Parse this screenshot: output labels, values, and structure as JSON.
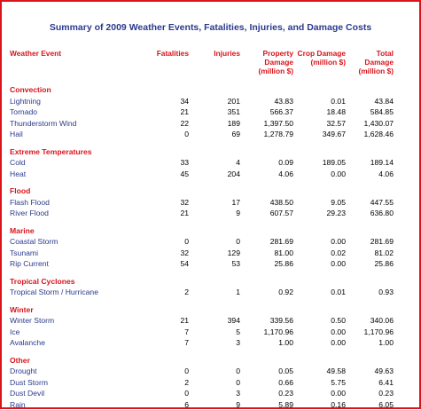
{
  "title": "Summary of 2009 Weather Events, Fatalities, Injuries, and Damage Costs",
  "headers": {
    "event": "Weather Event",
    "fatalities": "Fatalities",
    "injuries": "Injuries",
    "property": "Property Damage (million $)",
    "crop": "Crop Damage (million $)",
    "total": "Total Damage (million $)"
  },
  "categories": [
    {
      "name": "Convection",
      "rows": [
        [
          "Lightning",
          "34",
          "201",
          "43.83",
          "0.01",
          "43.84"
        ],
        [
          "Tornado",
          "21",
          "351",
          "566.37",
          "18.48",
          "584.85"
        ],
        [
          "Thunderstorm Wind",
          "22",
          "189",
          "1,397.50",
          "32.57",
          "1,430.07"
        ],
        [
          "Hail",
          "0",
          "69",
          "1,278.79",
          "349.67",
          "1,628.46"
        ]
      ]
    },
    {
      "name": "Extreme Temperatures",
      "rows": [
        [
          "Cold",
          "33",
          "4",
          "0.09",
          "189.05",
          "189.14"
        ],
        [
          "Heat",
          "45",
          "204",
          "4.06",
          "0.00",
          "4.06"
        ]
      ]
    },
    {
      "name": "Flood",
      "rows": [
        [
          "Flash Flood",
          "32",
          "17",
          "438.50",
          "9.05",
          "447.55"
        ],
        [
          "River Flood",
          "21",
          "9",
          "607.57",
          "29.23",
          "636.80"
        ]
      ]
    },
    {
      "name": "Marine",
      "rows": [
        [
          "Coastal Storm",
          "0",
          "0",
          "281.69",
          "0.00",
          "281.69"
        ],
        [
          "Tsunami",
          "32",
          "129",
          "81.00",
          "0.02",
          "81.02"
        ],
        [
          "Rip Current",
          "54",
          "53",
          "25.86",
          "0.00",
          "25.86"
        ]
      ]
    },
    {
      "name": "Tropical Cyclones",
      "rows": [
        [
          "Tropical Storm / Hurricane",
          "2",
          "1",
          "0.92",
          "0.01",
          "0.93"
        ]
      ]
    },
    {
      "name": "Winter",
      "rows": [
        [
          "Winter Storm",
          "21",
          "394",
          "339.56",
          "0.50",
          "340.06"
        ],
        [
          "Ice",
          "7",
          "5",
          "1,170.96",
          "0.00",
          "1,170.96"
        ],
        [
          "Avalanche",
          "7",
          "3",
          "1.00",
          "0.00",
          "1.00"
        ]
      ]
    },
    {
      "name": "Other",
      "rows": [
        [
          "Drought",
          "0",
          "0",
          "0.05",
          "49.58",
          "49.63"
        ],
        [
          "Dust Storm",
          "2",
          "0",
          "0.66",
          "5.75",
          "6.41"
        ],
        [
          "Dust Devil",
          "0",
          "3",
          "0.23",
          "0.00",
          "0.23"
        ],
        [
          "Rain",
          "6",
          "9",
          "5.89",
          "0.16",
          "6.05"
        ]
      ]
    }
  ]
}
